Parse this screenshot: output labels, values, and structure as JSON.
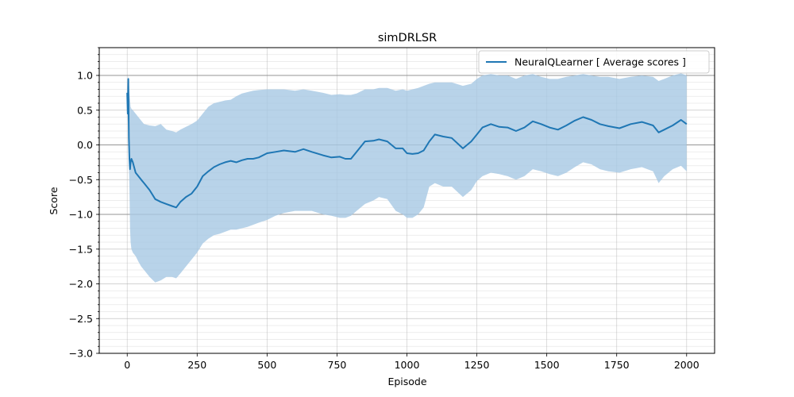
{
  "chart_data": {
    "type": "line",
    "title": "simDRLSR",
    "xlabel": "Episode",
    "ylabel": "Score",
    "xlim": [
      -100,
      2100
    ],
    "ylim": [
      -3.0,
      1.4
    ],
    "xticks": [
      0,
      250,
      500,
      750,
      1000,
      1250,
      1500,
      1750,
      2000
    ],
    "yticks": [
      -3.0,
      -2.5,
      -2.0,
      -1.5,
      -1.0,
      -0.5,
      0.0,
      0.5,
      1.0
    ],
    "xtick_labels": [
      "0",
      "250",
      "500",
      "750",
      "1000",
      "1250",
      "1500",
      "1750",
      "2000"
    ],
    "ytick_labels": [
      "−3.0",
      "−2.5",
      "−2.0",
      "−1.5",
      "−1.0",
      "−0.5",
      "0.0",
      "0.5",
      "1.0"
    ],
    "grid": true,
    "legend_position": "top-right",
    "colors": {
      "line": "#1f77b4",
      "band": "#a6c8e3",
      "axis": "#000000",
      "grid": "#b0b0b0",
      "hline": "#808080"
    },
    "series": [
      {
        "name": "NeuralQLearner [ Average scores ]",
        "x": [
          0,
          2,
          4,
          6,
          8,
          10,
          12,
          15,
          20,
          30,
          40,
          50,
          60,
          80,
          100,
          120,
          140,
          160,
          175,
          190,
          210,
          230,
          250,
          270,
          290,
          310,
          330,
          350,
          370,
          390,
          410,
          430,
          450,
          470,
          500,
          530,
          560,
          600,
          630,
          660,
          700,
          730,
          760,
          780,
          800,
          820,
          850,
          880,
          900,
          930,
          960,
          985,
          1000,
          1020,
          1040,
          1060,
          1080,
          1100,
          1130,
          1160,
          1200,
          1230,
          1250,
          1270,
          1300,
          1330,
          1360,
          1390,
          1420,
          1450,
          1480,
          1510,
          1540,
          1570,
          1600,
          1630,
          1660,
          1690,
          1720,
          1760,
          1800,
          1840,
          1880,
          1900,
          1920,
          1950,
          1980,
          2000
        ],
        "mean": [
          0.75,
          0.45,
          0.95,
          0.1,
          -0.2,
          -0.35,
          -0.25,
          -0.2,
          -0.25,
          -0.4,
          -0.45,
          -0.5,
          -0.55,
          -0.65,
          -0.78,
          -0.82,
          -0.85,
          -0.88,
          -0.9,
          -0.82,
          -0.75,
          -0.7,
          -0.6,
          -0.45,
          -0.38,
          -0.32,
          -0.28,
          -0.25,
          -0.23,
          -0.25,
          -0.22,
          -0.2,
          -0.2,
          -0.18,
          -0.12,
          -0.1,
          -0.08,
          -0.1,
          -0.06,
          -0.1,
          -0.15,
          -0.18,
          -0.17,
          -0.2,
          -0.2,
          -0.1,
          0.05,
          0.06,
          0.08,
          0.05,
          -0.05,
          -0.05,
          -0.12,
          -0.13,
          -0.12,
          -0.08,
          0.05,
          0.15,
          0.12,
          0.1,
          -0.05,
          0.05,
          0.15,
          0.25,
          0.3,
          0.26,
          0.25,
          0.2,
          0.25,
          0.34,
          0.3,
          0.25,
          0.22,
          0.28,
          0.35,
          0.4,
          0.36,
          0.3,
          0.27,
          0.24,
          0.3,
          0.33,
          0.28,
          0.18,
          0.22,
          0.28,
          0.36,
          0.3
        ],
        "upper": [
          0.85,
          0.8,
          1.0,
          0.9,
          0.75,
          0.65,
          0.55,
          0.52,
          0.5,
          0.45,
          0.4,
          0.35,
          0.3,
          0.28,
          0.27,
          0.3,
          0.22,
          0.2,
          0.18,
          0.22,
          0.26,
          0.3,
          0.35,
          0.45,
          0.55,
          0.6,
          0.62,
          0.64,
          0.65,
          0.7,
          0.74,
          0.76,
          0.78,
          0.79,
          0.8,
          0.8,
          0.8,
          0.78,
          0.8,
          0.78,
          0.75,
          0.72,
          0.73,
          0.72,
          0.72,
          0.74,
          0.8,
          0.8,
          0.82,
          0.82,
          0.78,
          0.8,
          0.78,
          0.8,
          0.82,
          0.85,
          0.88,
          0.9,
          0.9,
          0.9,
          0.85,
          0.88,
          0.95,
          1.0,
          1.02,
          1.0,
          1.0,
          0.95,
          1.0,
          1.02,
          0.98,
          0.95,
          0.95,
          0.98,
          1.0,
          1.02,
          1.0,
          0.98,
          0.98,
          0.95,
          0.98,
          1.0,
          0.98,
          0.92,
          0.95,
          1.0,
          1.03,
          1.0
        ],
        "lower": [
          0.6,
          0.3,
          0.9,
          -0.3,
          -0.6,
          -1.2,
          -1.4,
          -1.5,
          -1.55,
          -1.6,
          -1.68,
          -1.75,
          -1.8,
          -1.9,
          -1.98,
          -1.95,
          -1.9,
          -1.9,
          -1.92,
          -1.85,
          -1.75,
          -1.65,
          -1.55,
          -1.42,
          -1.35,
          -1.3,
          -1.28,
          -1.25,
          -1.22,
          -1.22,
          -1.2,
          -1.18,
          -1.15,
          -1.12,
          -1.08,
          -1.02,
          -0.98,
          -0.95,
          -0.95,
          -0.95,
          -1.0,
          -1.02,
          -1.05,
          -1.05,
          -1.02,
          -0.95,
          -0.85,
          -0.8,
          -0.75,
          -0.78,
          -0.95,
          -1.0,
          -1.05,
          -1.05,
          -1.0,
          -0.9,
          -0.6,
          -0.55,
          -0.6,
          -0.6,
          -0.75,
          -0.65,
          -0.52,
          -0.45,
          -0.4,
          -0.42,
          -0.45,
          -0.5,
          -0.45,
          -0.35,
          -0.38,
          -0.42,
          -0.45,
          -0.4,
          -0.32,
          -0.25,
          -0.28,
          -0.35,
          -0.38,
          -0.4,
          -0.35,
          -0.32,
          -0.38,
          -0.55,
          -0.45,
          -0.35,
          -0.3,
          -0.38
        ]
      }
    ]
  }
}
